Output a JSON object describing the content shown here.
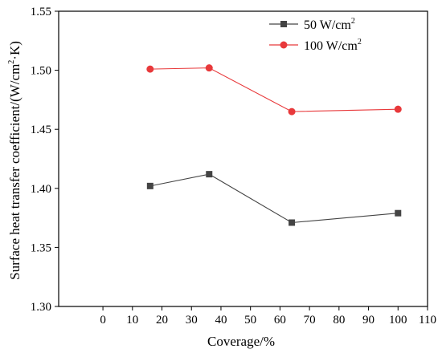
{
  "chart_data": {
    "type": "line",
    "title": "",
    "xlabel": "Coverage/%",
    "ylabel_main": "Surface heat transfer coefficient/(W/cm",
    "ylabel_sup": "2",
    "ylabel_end": "·K)",
    "xlim": [
      -15,
      110
    ],
    "ylim": [
      1.3,
      1.55
    ],
    "xticks": [
      0,
      10,
      20,
      30,
      40,
      50,
      60,
      70,
      80,
      90,
      100,
      110
    ],
    "xtick_labels": [
      "0",
      "10",
      "20",
      "30",
      "40",
      "50",
      "60",
      "70",
      "80",
      "90",
      "100",
      "110"
    ],
    "yticks": [
      1.3,
      1.35,
      1.4,
      1.45,
      1.5,
      1.55
    ],
    "ytick_labels": [
      "1.30",
      "1.35",
      "1.40",
      "1.45",
      "1.50",
      "1.55"
    ],
    "grid": false,
    "legend_position": "top-right",
    "x": [
      16,
      36,
      64,
      100
    ],
    "series": [
      {
        "name_main": "50 W/cm",
        "name_sup": "2",
        "values": [
          1.402,
          1.412,
          1.371,
          1.379
        ],
        "color": "#444444",
        "marker": "square"
      },
      {
        "name_main": "100 W/cm",
        "name_sup": "2",
        "values": [
          1.501,
          1.502,
          1.465,
          1.467
        ],
        "color": "#e8393b",
        "marker": "circle"
      }
    ]
  }
}
